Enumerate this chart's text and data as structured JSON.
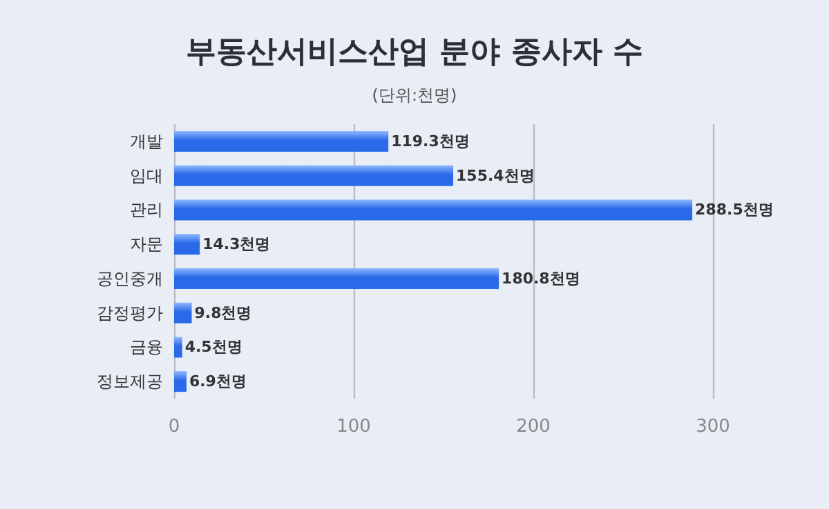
{
  "chart_data": {
    "type": "bar",
    "orientation": "horizontal",
    "title": "부동산서비스산업 분야 종사자 수",
    "subtitle": "(단위:천명)",
    "categories": [
      "개발",
      "임대",
      "관리",
      "자문",
      "공인중개",
      "감정평가",
      "금융",
      "정보제공"
    ],
    "values": [
      119.3,
      155.4,
      288.5,
      14.3,
      180.8,
      9.8,
      4.5,
      6.9
    ],
    "value_labels": [
      "119.3천명",
      "155.4천명",
      "288.5천명",
      "14.3천명",
      "180.8천명",
      "9.8천명",
      "4.5천명",
      "6.9천명"
    ],
    "color": "#2a6ae8",
    "xlim": [
      0,
      300
    ],
    "xticks": [
      0,
      100,
      200,
      300
    ],
    "grid": "x"
  }
}
